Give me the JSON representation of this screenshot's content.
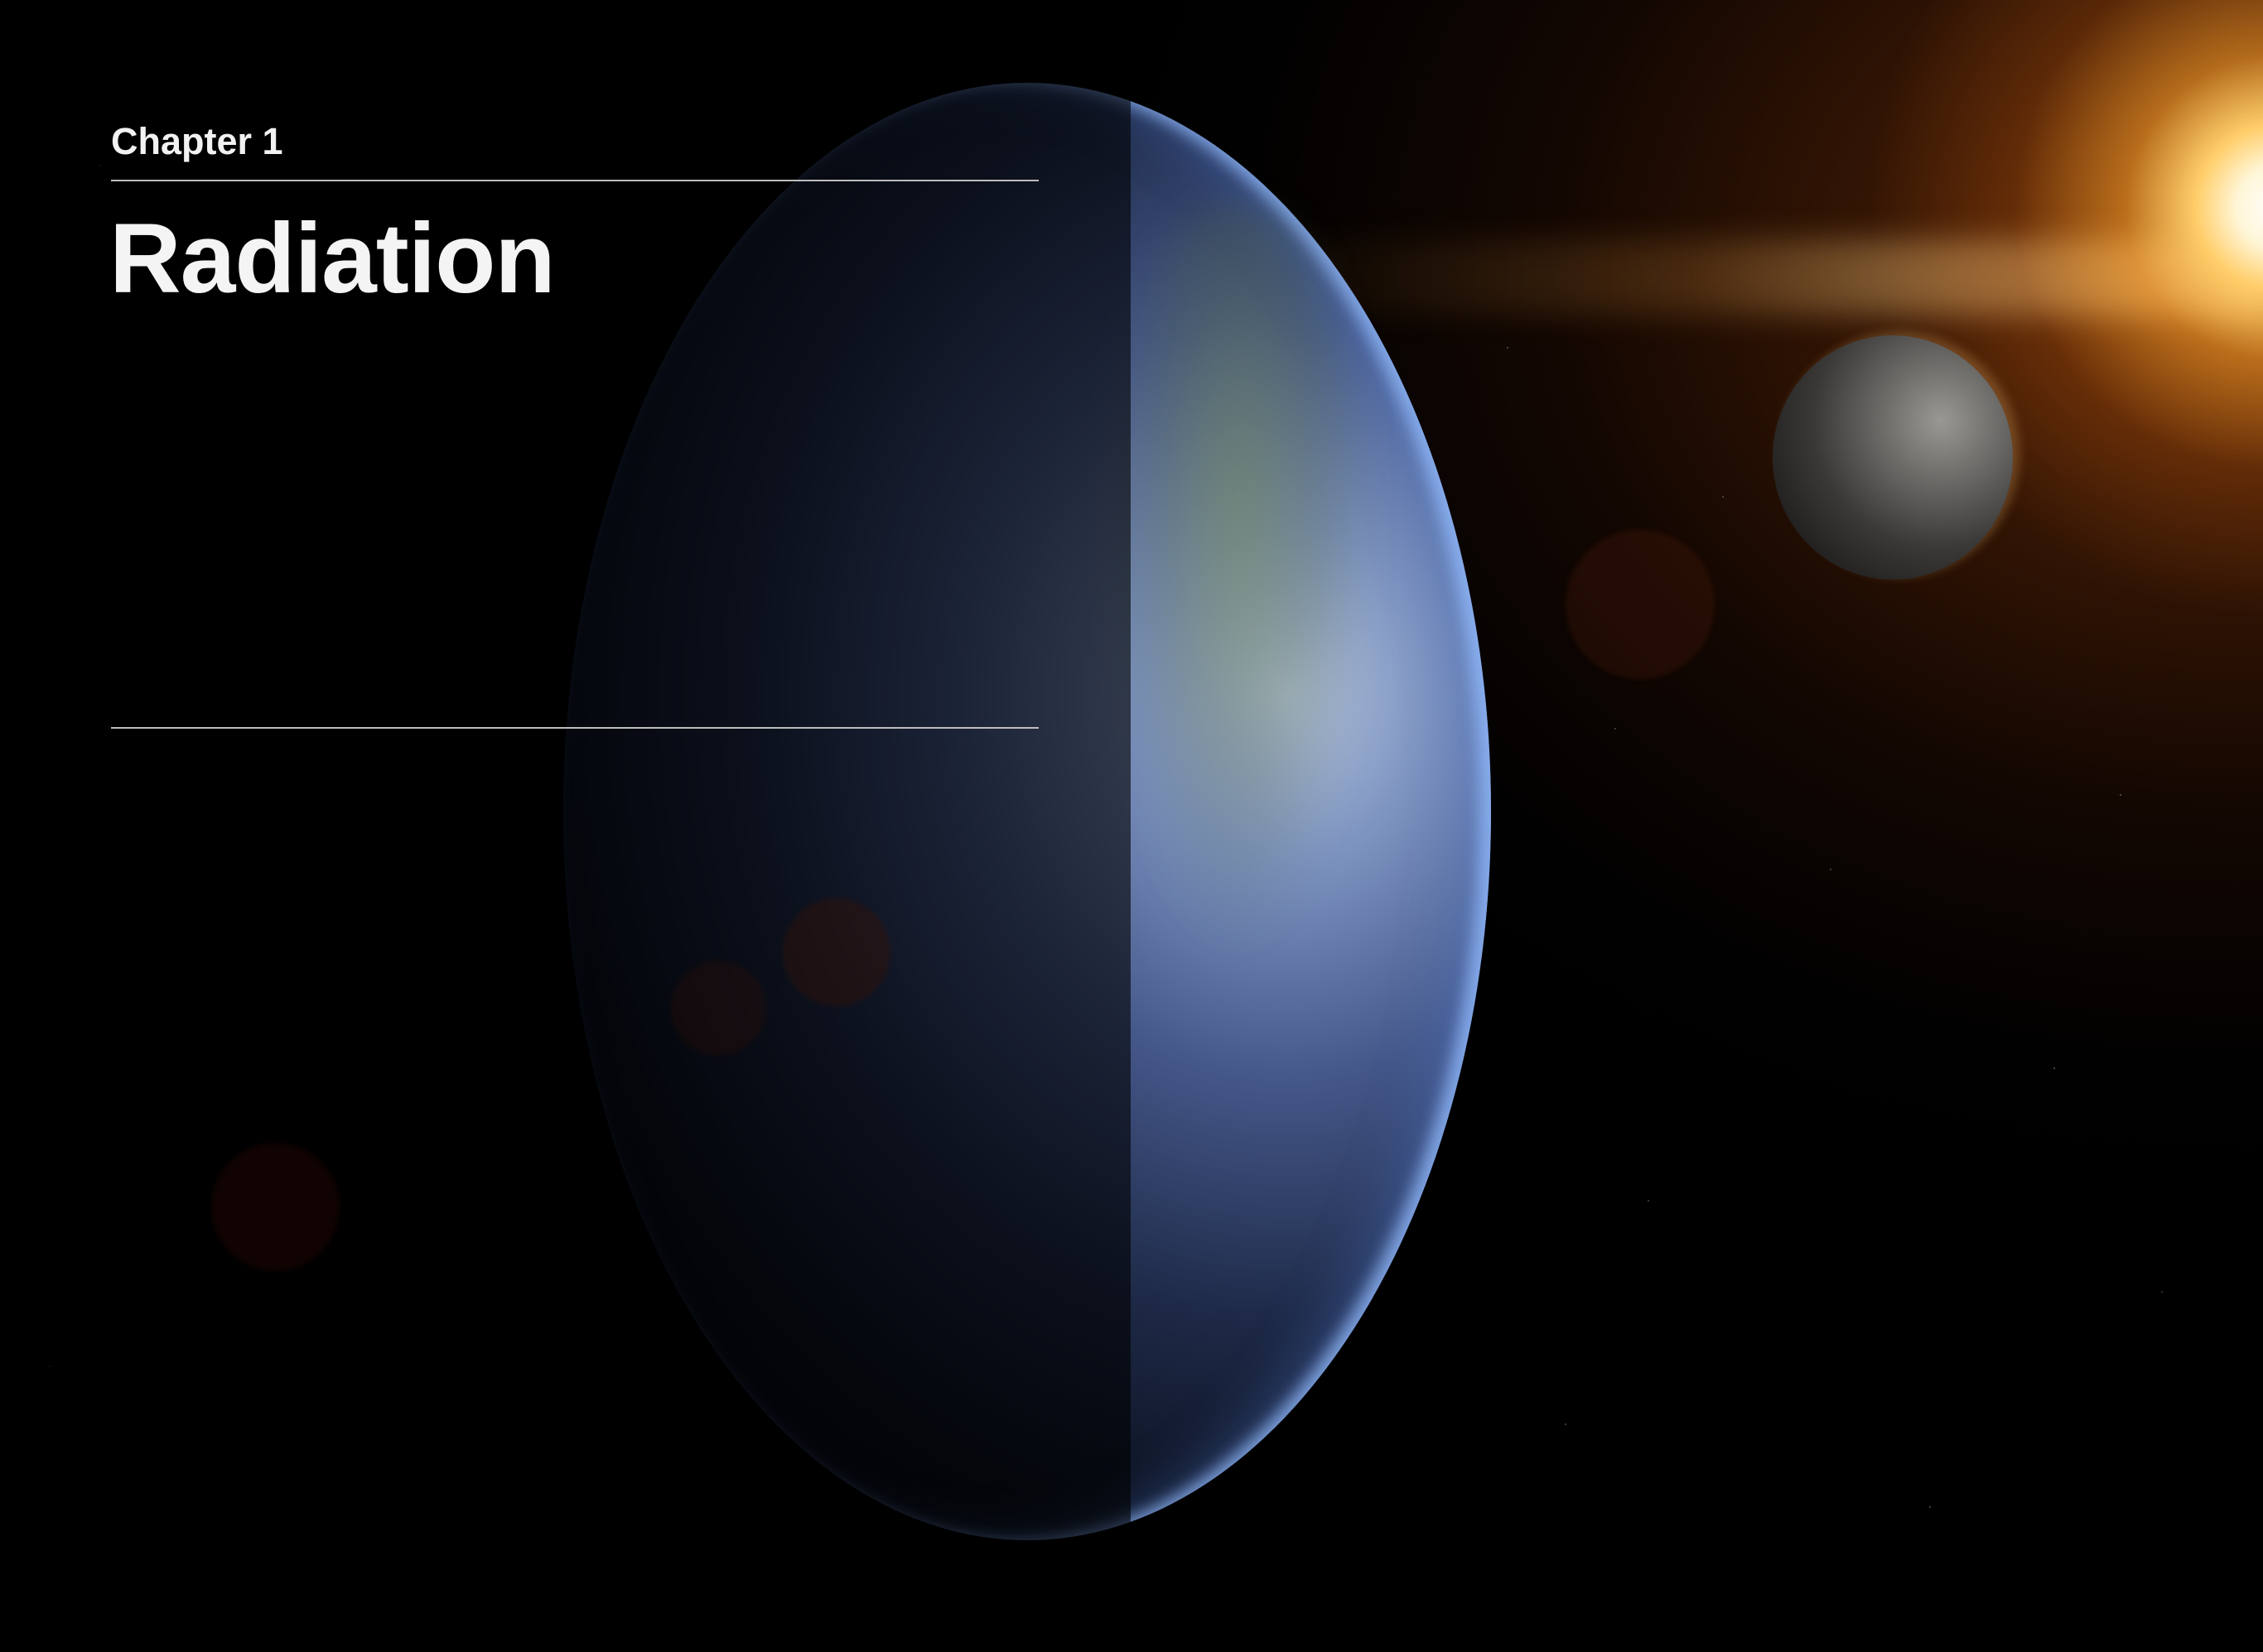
{
  "chapter": {
    "label": "Chapter 1",
    "title": "Radiation"
  },
  "background": {
    "scene": "space-earth-moon-sun"
  }
}
